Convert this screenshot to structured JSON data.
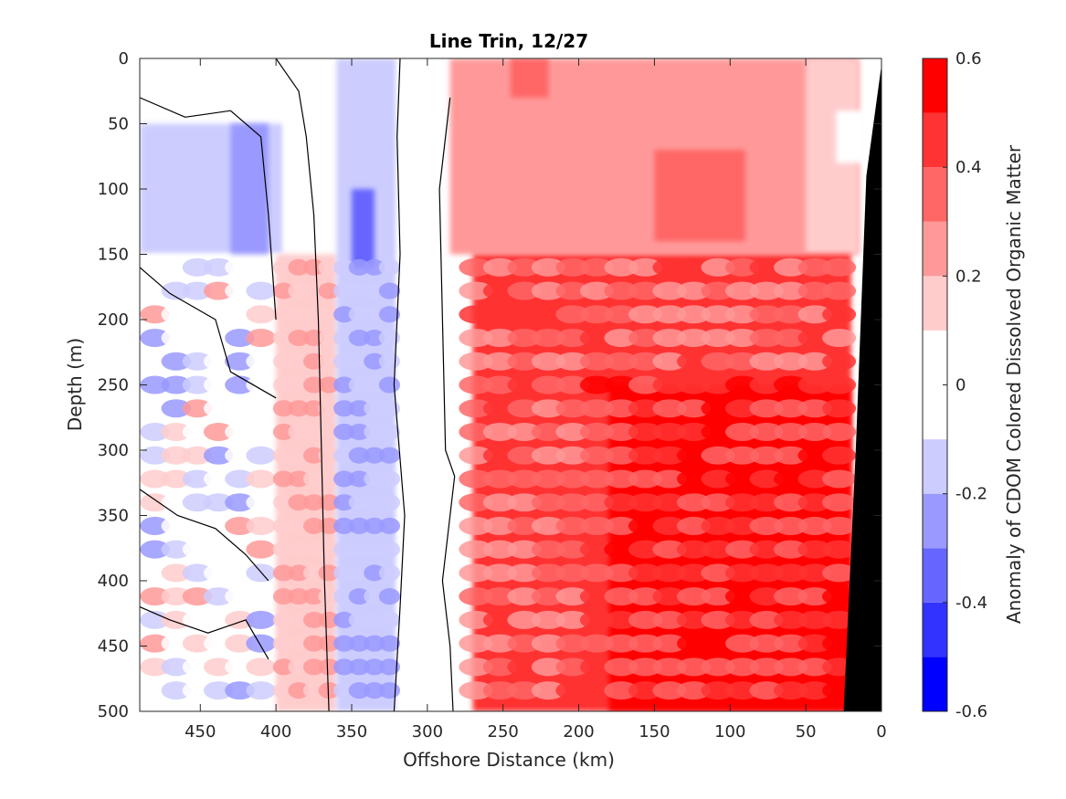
{
  "chart_data": {
    "type": "heatmap",
    "subtype": "filled-contour",
    "title": "Line Trin, 12/27",
    "xlabel": "Offshore Distance (km)",
    "ylabel": "Depth (m)",
    "colorbar_label": "Anomaly of CDOM Colored Dissolved Organic Matter",
    "xlim": [
      490,
      0
    ],
    "x_reversed": true,
    "ylim": [
      0,
      500
    ],
    "y_reversed": true,
    "x_ticks": [
      450,
      400,
      350,
      300,
      250,
      200,
      150,
      100,
      50,
      0
    ],
    "y_ticks": [
      0,
      50,
      100,
      150,
      200,
      250,
      300,
      350,
      400,
      450,
      500
    ],
    "colorbar_range": [
      -0.6,
      0.6
    ],
    "colorbar_ticks": [
      -0.6,
      -0.4,
      -0.2,
      0,
      0.2,
      0.4,
      0.6
    ],
    "colorbar_tick_labels": [
      "-0.6",
      "-0.4",
      "-0.2",
      "0",
      "0.2",
      "0.4",
      "0.6"
    ],
    "levels": [
      -0.6,
      -0.5,
      -0.4,
      -0.3,
      -0.2,
      -0.1,
      0.1,
      0.2,
      0.3,
      0.4,
      0.5,
      0.6
    ],
    "level_colors": [
      "#0000ff",
      "#3333ff",
      "#6666ff",
      "#9999ff",
      "#ccccff",
      "#ffffff",
      "#ffcccc",
      "#ff9999",
      "#ff6666",
      "#ff3333",
      "#ff0000"
    ],
    "zero_contour_color": "#000000",
    "seafloor_color": "#000000",
    "seafloor_profile": [
      [
        25,
        500
      ],
      [
        17,
        300
      ],
      [
        10,
        90
      ],
      [
        0,
        5
      ]
    ],
    "grid": false,
    "colorbar_position": "right",
    "field_regions": [
      {
        "x_range": [
          490,
          395
        ],
        "depth_range": [
          0,
          50
        ],
        "value": 0.0
      },
      {
        "x_range": [
          490,
          395
        ],
        "depth_range": [
          50,
          150
        ],
        "value": -0.15
      },
      {
        "x_range": [
          430,
          405
        ],
        "depth_range": [
          50,
          280
        ],
        "value": -0.3
      },
      {
        "x_range": [
          490,
          395
        ],
        "depth_range": [
          150,
          500
        ],
        "value": 0.0,
        "note": "patchy alternating +/-0.1 to 0.3"
      },
      {
        "x_range": [
          395,
          360
        ],
        "depth_range": [
          0,
          150
        ],
        "value": 0.05
      },
      {
        "x_range": [
          400,
          360
        ],
        "depth_range": [
          150,
          500
        ],
        "value": 0.15
      },
      {
        "x_range": [
          360,
          320
        ],
        "depth_range": [
          0,
          500
        ],
        "value": -0.2
      },
      {
        "x_range": [
          350,
          335
        ],
        "depth_range": [
          100,
          160
        ],
        "value": -0.4
      },
      {
        "x_range": [
          320,
          285
        ],
        "depth_range": [
          0,
          500
        ],
        "value": 0.0
      },
      {
        "x_range": [
          285,
          15
        ],
        "depth_range": [
          0,
          150
        ],
        "value": 0.25
      },
      {
        "x_range": [
          245,
          220
        ],
        "depth_range": [
          0,
          30
        ],
        "value": 0.35
      },
      {
        "x_range": [
          150,
          90
        ],
        "depth_range": [
          70,
          140
        ],
        "value": 0.35
      },
      {
        "x_range": [
          50,
          15
        ],
        "depth_range": [
          0,
          150
        ],
        "value": 0.15
      },
      {
        "x_range": [
          30,
          10
        ],
        "depth_range": [
          40,
          80
        ],
        "value": 0.0
      },
      {
        "x_range": [
          270,
          20
        ],
        "depth_range": [
          150,
          500
        ],
        "value": 0.4
      },
      {
        "x_range": [
          180,
          20
        ],
        "depth_range": [
          250,
          500
        ],
        "value": 0.5
      }
    ]
  }
}
